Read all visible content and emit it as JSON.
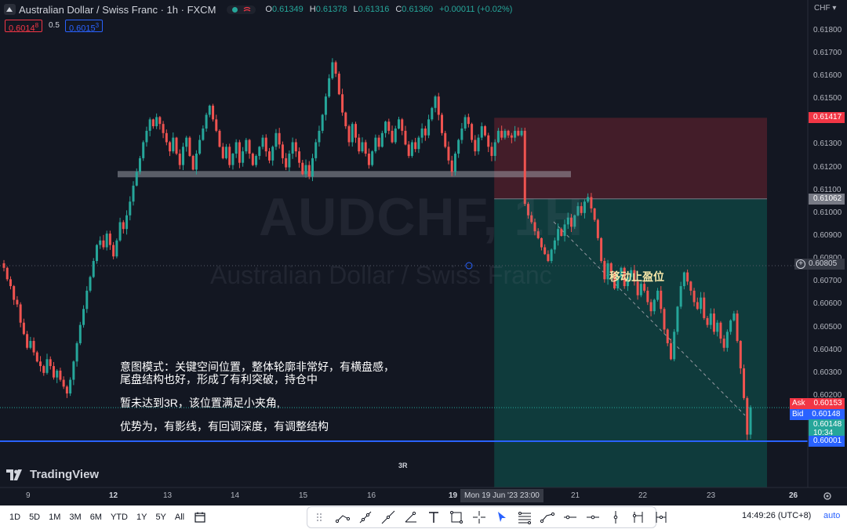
{
  "header": {
    "title": "Australian Dollar / Swiss Franc · 1h · FXCM",
    "ohlc": [
      {
        "k": "O",
        "v": "0.61349"
      },
      {
        "k": "H",
        "v": "0.61378"
      },
      {
        "k": "L",
        "v": "0.61316"
      },
      {
        "k": "C",
        "v": "0.61360"
      }
    ],
    "change": "+0.00011 (+0.02%)"
  },
  "trade": {
    "sell": "0.6014",
    "sell_sup": "8",
    "spread": "0.5",
    "buy": "0.6015",
    "buy_sup": "3"
  },
  "watermark": {
    "symbol": "AUDCHF, 1H",
    "name": "Australian Dollar / Swiss Franc"
  },
  "annotations": {
    "note_a": "意图模式：关键空间位置，整体轮廓非常好，有横盘感，尾盘结构也好，形成了有利突破，持仓中",
    "note_b": "暂未达到3R，该位置满足小夹角,",
    "note_c": "优势为，有影线，有回调深度，有调整结构",
    "trailing_stop": "移动止盈位",
    "target": "3R"
  },
  "brand": "TradingView",
  "price_axis": {
    "currency": "CHF",
    "ticks": [
      "0.61800",
      "0.61700",
      "0.61600",
      "0.61500",
      "0.61400",
      "0.61300",
      "0.61200",
      "0.61100",
      "0.61000",
      "0.60900",
      "0.60800",
      "0.60700",
      "0.60600",
      "0.60500",
      "0.60400",
      "0.60300",
      "0.60200"
    ],
    "tags": {
      "stop": "0.61417",
      "entry": "0.61062",
      "cursor": "0.60805",
      "ask_label": "Ask",
      "ask": "0.60153",
      "bid_label": "Bid",
      "bid": "0.60148",
      "last": "0.60148",
      "countdown": "10:34",
      "target": "0.60001"
    },
    "colors": {
      "stop": "#f23645",
      "entry": "#787b86",
      "ask": "#f23645",
      "bid": "#2962ff",
      "last": "#26a69a",
      "target": "#2962ff"
    }
  },
  "time_axis": {
    "ticks": [
      {
        "label": "9",
        "bold": false
      },
      {
        "label": "12",
        "bold": true
      },
      {
        "label": "13",
        "bold": false
      },
      {
        "label": "14",
        "bold": false
      },
      {
        "label": "15",
        "bold": false
      },
      {
        "label": "16",
        "bold": false
      },
      {
        "label": "19",
        "bold": true
      },
      {
        "label": "21",
        "bold": false
      },
      {
        "label": "22",
        "bold": false
      },
      {
        "label": "23",
        "bold": false
      },
      {
        "label": "26",
        "bold": true
      }
    ],
    "crosshair_date": "Mon 19 Jun '23  23:00"
  },
  "bottom_toolbar": {
    "timeframes": [
      "1D",
      "5D",
      "1M",
      "3M",
      "6M",
      "YTD",
      "1Y",
      "5Y",
      "All"
    ],
    "clock": "14:49:26 (UTC+8)",
    "auto": "auto",
    "tools": [
      "grip-icon",
      "trend-line-icon",
      "ray-icon",
      "extended-line-icon",
      "angle-icon",
      "text-icon",
      "rectangle-icon",
      "crosshair-icon",
      "cursor-icon",
      "fib-icon",
      "polyline-icon",
      "horizontal-ray-icon",
      "horizontal-line-icon",
      "vertical-line-icon",
      "long-position-icon",
      "date-range-icon"
    ]
  },
  "chart_data": {
    "type": "candlestick",
    "symbol": "AUDCHF",
    "interval": "1h",
    "levels": {
      "stop": 0.61417,
      "entry": 0.61062,
      "target": 0.60001,
      "support_zone": 0.6117
    },
    "colors": {
      "up": "#26a69a",
      "down": "#ef5350"
    },
    "y_range": [
      0.5985,
      0.6184
    ],
    "closes": [
      0.6076,
      0.6071,
      0.6068,
      0.6062,
      0.606,
      0.6052,
      0.6047,
      0.6041,
      0.6044,
      0.6039,
      0.6035,
      0.6033,
      0.603,
      0.6036,
      0.6033,
      0.6028,
      0.6031,
      0.6027,
      0.6024,
      0.6021,
      0.6027,
      0.6035,
      0.6043,
      0.6051,
      0.6058,
      0.6066,
      0.6072,
      0.6079,
      0.6086,
      0.6088,
      0.6085,
      0.6091,
      0.6086,
      0.6081,
      0.6088,
      0.6096,
      0.6093,
      0.6099,
      0.6105,
      0.6112,
      0.6118,
      0.6124,
      0.6131,
      0.6136,
      0.6141,
      0.6138,
      0.6142,
      0.6139,
      0.6135,
      0.6131,
      0.6127,
      0.6133,
      0.6126,
      0.6121,
      0.6129,
      0.6133,
      0.6125,
      0.6119,
      0.6126,
      0.6132,
      0.6137,
      0.6143,
      0.6147,
      0.6141,
      0.6136,
      0.6129,
      0.6124,
      0.6129,
      0.6121,
      0.6126,
      0.6131,
      0.6122,
      0.6127,
      0.6132,
      0.6126,
      0.6121,
      0.6125,
      0.6129,
      0.6133,
      0.6127,
      0.6123,
      0.6129,
      0.6135,
      0.613,
      0.6124,
      0.612,
      0.6126,
      0.6131,
      0.6127,
      0.6122,
      0.6117,
      0.6121,
      0.6116,
      0.6124,
      0.6131,
      0.6136,
      0.6143,
      0.6151,
      0.6159,
      0.6166,
      0.6161,
      0.6152,
      0.6144,
      0.6138,
      0.6131,
      0.6139,
      0.6133,
      0.6127,
      0.6131,
      0.6126,
      0.6121,
      0.6127,
      0.6133,
      0.6129,
      0.6135,
      0.614,
      0.6136,
      0.6131,
      0.6137,
      0.6141,
      0.6136,
      0.613,
      0.6125,
      0.6131,
      0.6128,
      0.6133,
      0.6137,
      0.6134,
      0.6141,
      0.6146,
      0.6151,
      0.6143,
      0.6135,
      0.6129,
      0.6123,
      0.6118,
      0.6126,
      0.6132,
      0.6137,
      0.6142,
      0.6139,
      0.6132,
      0.6127,
      0.6133,
      0.6138,
      0.6134,
      0.6129,
      0.6125,
      0.6131,
      0.6136,
      0.6133,
      0.6136,
      0.6134,
      0.6133,
      0.6136,
      0.6134,
      0.6136,
      0.6104,
      0.6099,
      0.6096,
      0.6092,
      0.6089,
      0.6085,
      0.6082,
      0.6079,
      0.6084,
      0.6088,
      0.6093,
      0.609,
      0.6095,
      0.6098,
      0.6094,
      0.6099,
      0.6103,
      0.61,
      0.6105,
      0.6107,
      0.6102,
      0.6097,
      0.6089,
      0.6079,
      0.6071,
      0.6078,
      0.6074,
      0.6067,
      0.6072,
      0.6076,
      0.6068,
      0.6072,
      0.6075,
      0.607,
      0.6064,
      0.6069,
      0.6066,
      0.6061,
      0.6057,
      0.6062,
      0.6066,
      0.6058,
      0.6049,
      0.6043,
      0.6036,
      0.6048,
      0.6059,
      0.6068,
      0.6074,
      0.607,
      0.6066,
      0.6061,
      0.6058,
      0.6063,
      0.6054,
      0.6051,
      0.6056,
      0.6048,
      0.6052,
      0.6045,
      0.6041,
      0.6048,
      0.6053,
      0.6056,
      0.6044,
      0.6032,
      0.6019,
      0.6003,
      0.6015
    ]
  }
}
